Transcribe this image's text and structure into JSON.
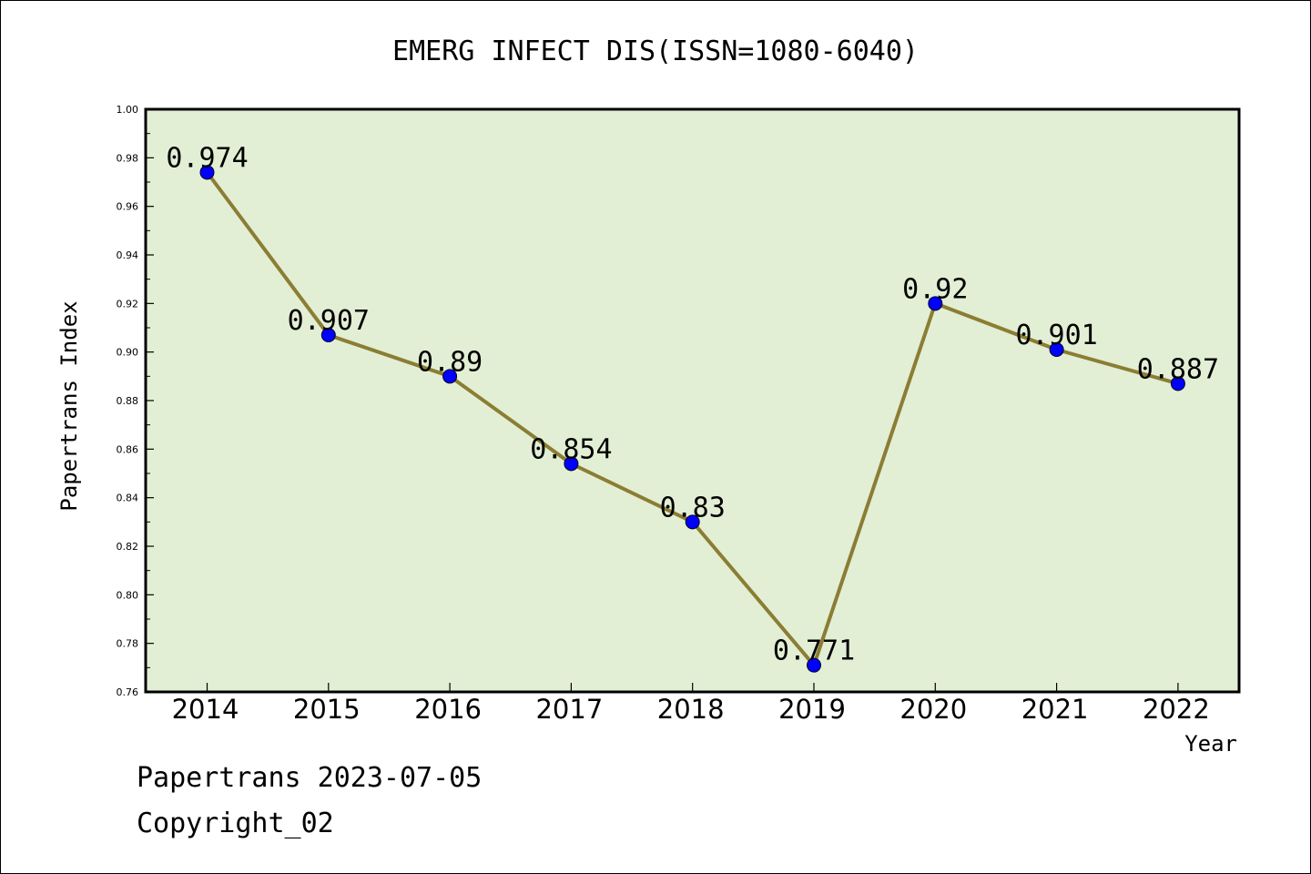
{
  "chart_data": {
    "type": "line",
    "title": "EMERG INFECT DIS(ISSN=1080-6040)",
    "xlabel": "Year",
    "ylabel": "Papertrans Index",
    "categories": [
      "2014",
      "2015",
      "2016",
      "2017",
      "2018",
      "2019",
      "2020",
      "2021",
      "2022"
    ],
    "series": [
      {
        "values": [
          0.974,
          0.907,
          0.89,
          0.854,
          0.83,
          0.771,
          0.92,
          0.901,
          0.887
        ],
        "labels": [
          "0.974",
          "0.907",
          "0.89",
          "0.854",
          "0.83",
          "0.771",
          "0.92",
          "0.901",
          "0.887"
        ]
      }
    ],
    "ylim": [
      0.76,
      1.0
    ],
    "ytick_step": 0.02,
    "yticks": [
      "0.76",
      "0.78",
      "0.80",
      "0.82",
      "0.84",
      "0.86",
      "0.88",
      "0.90",
      "0.92",
      "0.94",
      "0.96",
      "0.98",
      "1.00"
    ],
    "grid": false,
    "legend": "none",
    "colors": {
      "plot_background": "#e2efd5",
      "line": "#8b7d33",
      "marker": "#0000ff"
    }
  },
  "footer": {
    "line1": "Papertrans 2023-07-05",
    "line2": "Copyright_02"
  }
}
